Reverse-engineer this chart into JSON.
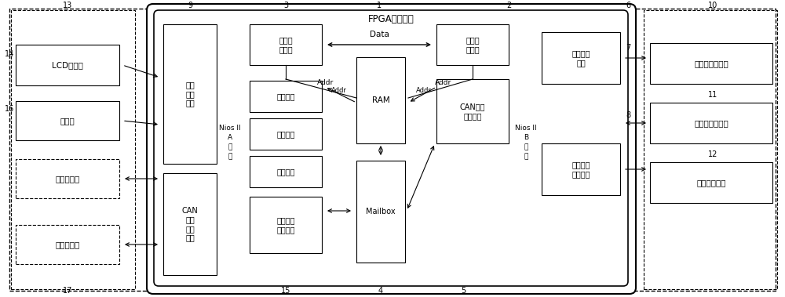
{
  "fig_width": 10.0,
  "fig_height": 3.79,
  "dpi": 100,
  "labels": {
    "fpga_title": "FPGA核心单元",
    "hmi": "人机\n交互\n模块",
    "can_a": "CAN\n总线\n通信\n模块",
    "nios_a_1": "Nios II",
    "nios_a_2": "A",
    "nios_a_3": "软",
    "nios_a_4": "核",
    "mem_slave_l": "存储器\n从端口",
    "pose_est": "姿态估计",
    "boot_check": "开机自检",
    "collision": "碰撞检测",
    "realtime": "实时工作\n状态评估",
    "ram": "RAM",
    "addr_l": "Addr",
    "addr_r": "Addr",
    "data_lbl": "Data",
    "mailbox": "Mailbox",
    "mem_slave_r": "存储器\n从端口",
    "nios_b_1": "Nios II",
    "nios_b_2": "B",
    "nios_b_3": "软",
    "nios_b_4": "核",
    "can_b": "CAN总线\n通信模块",
    "adc": "模数转换\n模块",
    "nav": "组合导航\n接收模块",
    "lcd": "LCD液晶屏",
    "buzzer": "蜂鸣器",
    "env": "环境感知层",
    "plan": "规划协调层",
    "power_sensor": "动力单元传感器",
    "servo_ctrl": "四肢伺服控制器",
    "nav_sys": "组合导航系统"
  }
}
